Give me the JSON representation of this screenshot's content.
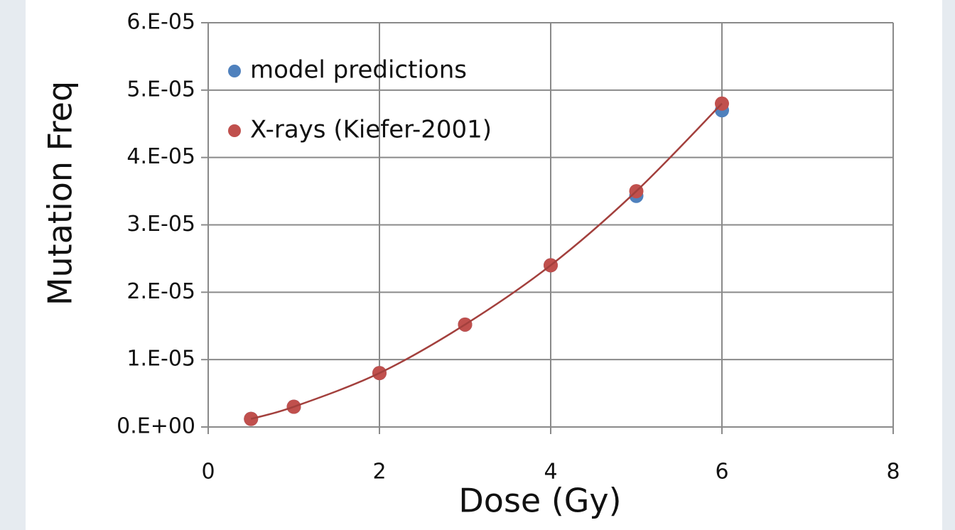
{
  "chart_data": {
    "type": "scatter",
    "x_label": "Dose (Gy)",
    "y_label": "Mutation Freq",
    "xlim": [
      0,
      8
    ],
    "xticks": [
      0,
      2,
      4,
      6,
      8
    ],
    "ylim": [
      0,
      6e-05
    ],
    "yticks": [
      {
        "value": 0,
        "label": "0.E+00"
      },
      {
        "value": 1e-05,
        "label": "1.E-05"
      },
      {
        "value": 2e-05,
        "label": "2.E-05"
      },
      {
        "value": 3e-05,
        "label": "3.E-05"
      },
      {
        "value": 4e-05,
        "label": "4.E-05"
      },
      {
        "value": 5e-05,
        "label": "5.E-05"
      },
      {
        "value": 6e-05,
        "label": "6.E-05"
      }
    ],
    "grid": true,
    "legend": "upper left",
    "series": [
      {
        "name": "model predictions",
        "color": "#4f81bd",
        "x": [
          0.5,
          1,
          2,
          3,
          4,
          5,
          6
        ],
        "values": [
          1.2e-06,
          3e-06,
          8e-06,
          1.52e-05,
          2.4e-05,
          3.43e-05,
          4.7e-05
        ]
      },
      {
        "name": "X-rays (Kiefer-2001)",
        "color": "#c0504d",
        "trendline": true,
        "trendline_color": "#a3403d",
        "x": [
          0.5,
          1,
          2,
          3,
          4,
          5,
          6
        ],
        "values": [
          1.2e-06,
          3e-06,
          8e-06,
          1.52e-05,
          2.4e-05,
          3.5e-05,
          4.8e-05
        ]
      }
    ]
  }
}
